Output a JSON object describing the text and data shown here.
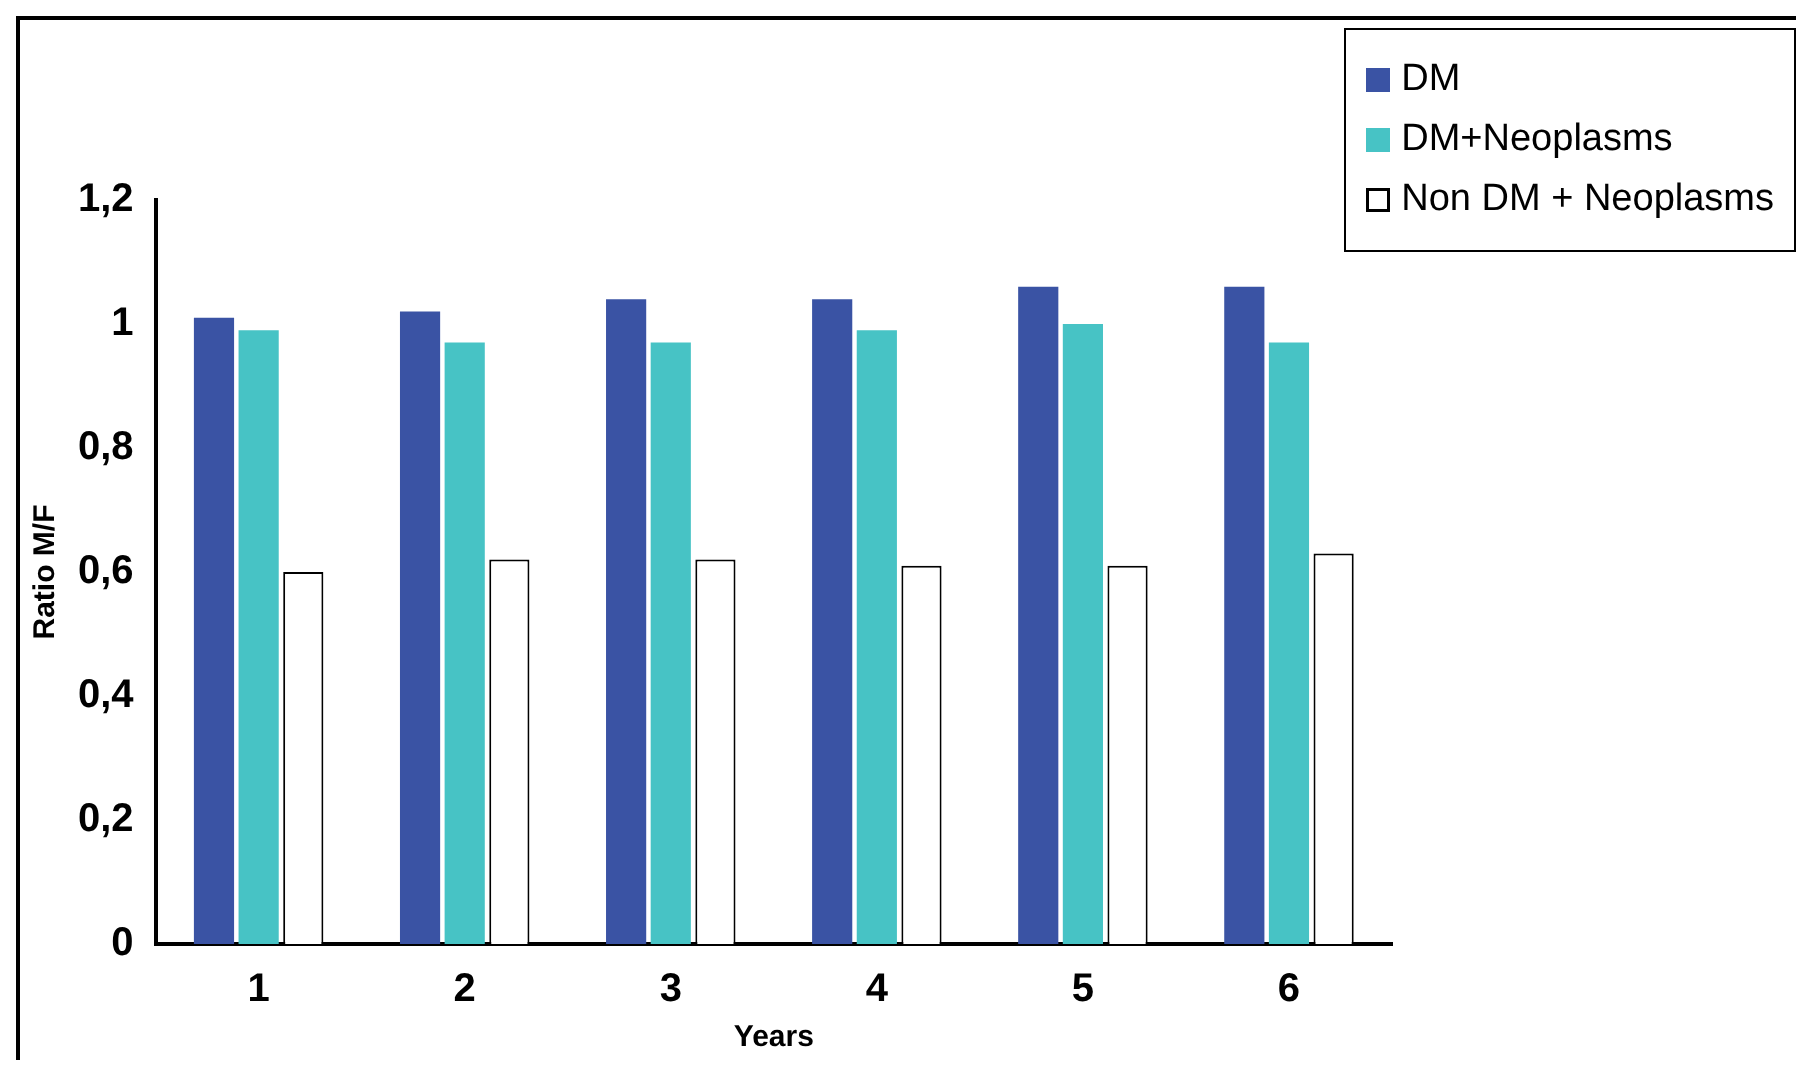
{
  "chart_data": {
    "type": "bar",
    "xlabel": "Years",
    "ylabel": "Ratio M/F",
    "categories": [
      "1",
      "2",
      "3",
      "4",
      "5",
      "6"
    ],
    "series": [
      {
        "name": "DM",
        "color": "#3a53a4",
        "values": [
          1.01,
          1.02,
          1.04,
          1.04,
          1.06,
          1.06
        ]
      },
      {
        "name": "DM+Neoplasms",
        "color": "#47c3c5",
        "values": [
          0.99,
          0.97,
          0.97,
          0.99,
          1.0,
          0.97
        ]
      },
      {
        "name": "Non DM + Neoplasms",
        "color": "#ffffff",
        "values": [
          0.6,
          0.62,
          0.62,
          0.61,
          0.61,
          0.63
        ]
      }
    ],
    "ylim": [
      0,
      1.2
    ],
    "yticks": [
      {
        "value": 0,
        "label": "0"
      },
      {
        "value": 0.2,
        "label": "0,2"
      },
      {
        "value": 0.4,
        "label": "0,4"
      },
      {
        "value": 0.6,
        "label": "0,6"
      },
      {
        "value": 0.8,
        "label": "0,8"
      },
      {
        "value": 1,
        "label": "1"
      },
      {
        "value": 1.2,
        "label": "1,2"
      }
    ],
    "grid": false,
    "legend": "top right"
  }
}
